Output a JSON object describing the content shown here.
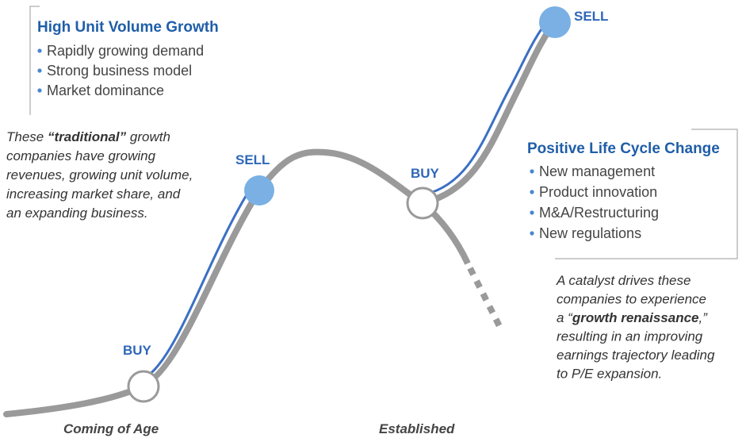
{
  "left_box": {
    "title": "High Unit Volume Growth",
    "bullets": [
      "Rapidly growing demand",
      "Strong business model",
      "Market dominance"
    ]
  },
  "left_note": {
    "lines": [
      [
        {
          "text": "These "
        },
        {
          "text": "“traditional”",
          "bold": true
        },
        {
          "text": " growth"
        }
      ],
      [
        {
          "text": "companies have growing"
        }
      ],
      [
        {
          "text": "revenues, growing unit volume,"
        }
      ],
      [
        {
          "text": "increasing market share, and"
        }
      ],
      [
        {
          "text": "an expanding business."
        }
      ]
    ]
  },
  "right_box": {
    "title": "Positive Life Cycle Change",
    "bullets": [
      "New management",
      "Product innovation",
      "M&A/Restructuring",
      "New regulations"
    ]
  },
  "right_note": {
    "lines": [
      [
        {
          "text": "A catalyst drives these"
        }
      ],
      [
        {
          "text": "companies to experience"
        }
      ],
      [
        {
          "text": "a “"
        },
        {
          "text": "growth renaissance",
          "bold": true
        },
        {
          "text": ",”"
        }
      ],
      [
        {
          "text": "resulting in an improving"
        }
      ],
      [
        {
          "text": "earnings trajectory leading"
        }
      ],
      [
        {
          "text": "to P/E expansion."
        }
      ]
    ]
  },
  "markers": [
    "BUY",
    "SELL",
    "BUY",
    "SELL"
  ],
  "stages": [
    "Coming of Age",
    "Established"
  ]
}
